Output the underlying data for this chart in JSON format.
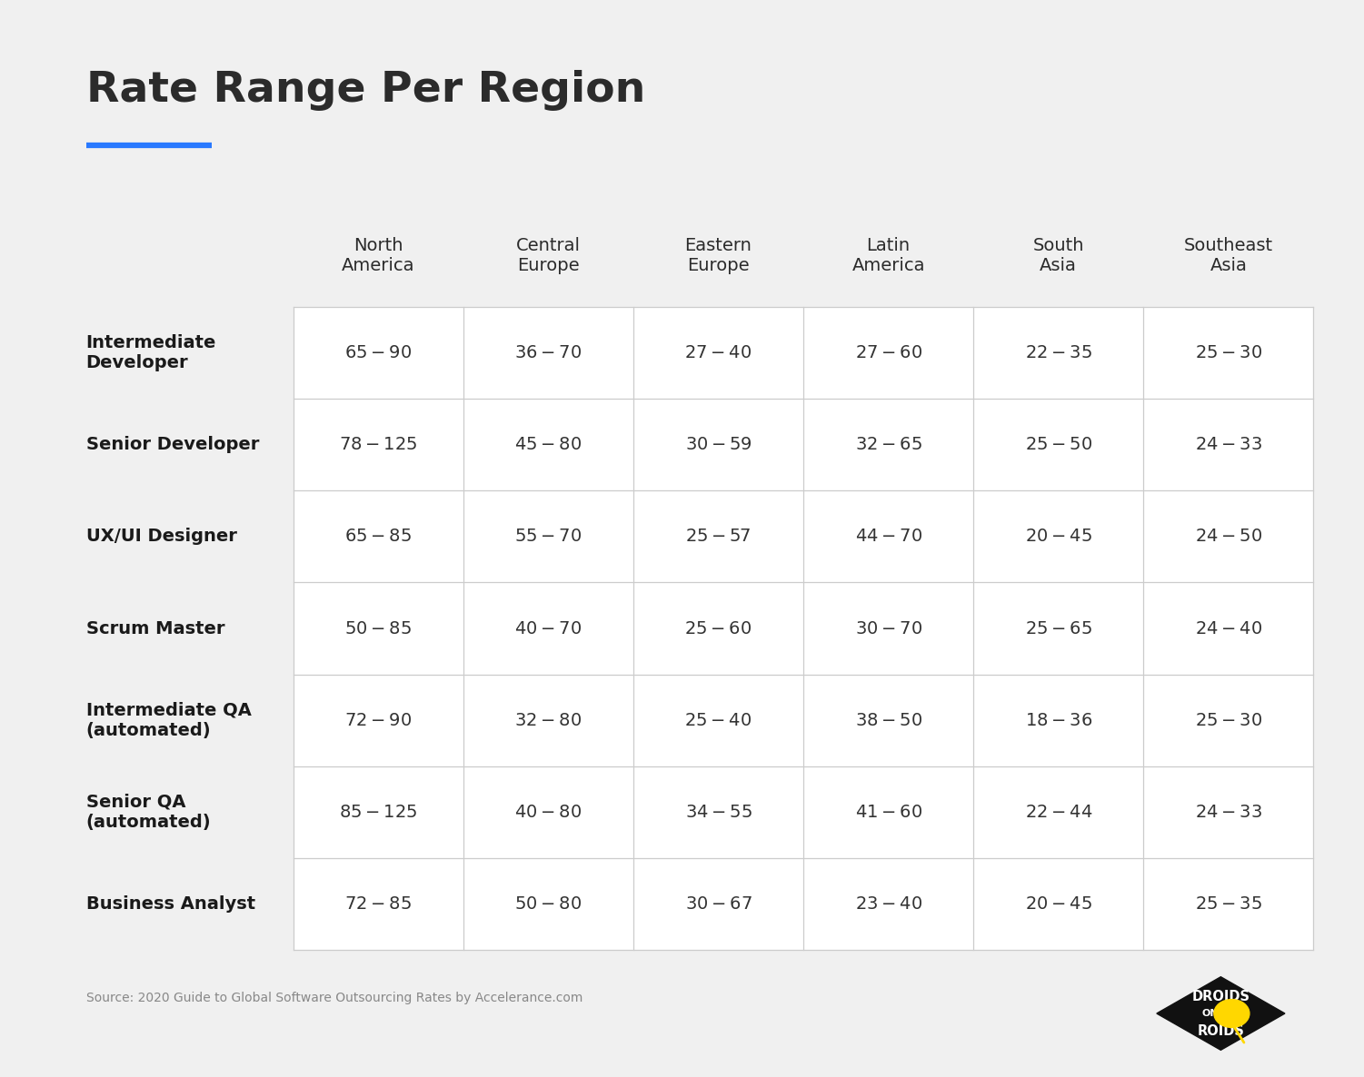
{
  "title": "Rate Range Per Region",
  "title_fontsize": 34,
  "title_color": "#2b2b2b",
  "background_color": "#f0f0f0",
  "table_bg_color": "#ffffff",
  "accent_color": "#2979FF",
  "source_text": "Source: 2020 Guide to Global Software Outsourcing Rates by Accelerance.com",
  "col_headers": [
    "North\nAmerica",
    "Central\nEurope",
    "Eastern\nEurope",
    "Latin\nAmerica",
    "South\nAsia",
    "Southeast\nAsia"
  ],
  "row_headers": [
    "Intermediate\nDeveloper",
    "Senior Developer",
    "UX/UI Designer",
    "Scrum Master",
    "Intermediate QA\n(automated)",
    "Senior QA\n(automated)",
    "Business Analyst"
  ],
  "table_data": [
    [
      "$65 - $90",
      "$36 - $70",
      "$27 - $40",
      "$27 - $60",
      "$22 - $35",
      "$25 - $30"
    ],
    [
      "$78 - $125",
      "$45 - $80",
      "$30 - $59",
      "$32 - $65",
      "$25 - $50",
      "$24 - $33"
    ],
    [
      "$65 - $85",
      "$55 - $70",
      "$25 - $57",
      "$44 - $70",
      "$20 - $45",
      "$24 - $50"
    ],
    [
      "$50 - $85",
      "$40 - $70",
      "$25 - $60",
      "$30 - $70",
      "$25 - $65",
      "$24 - $40"
    ],
    [
      "$72 - $90",
      "$32 - $80",
      "$25 - $40",
      "$38 - $50",
      "$18 - $36",
      "$25 - $30"
    ],
    [
      "$85 - $125",
      "$40 - $80",
      "$34 - $55",
      "$41 - $60",
      "$22 - $44",
      "$24 - $33"
    ],
    [
      "$72 - $85",
      "$50 - $80",
      "$30 - $67",
      "$23 - $40",
      "$20 - $45",
      "$25 - $35"
    ]
  ],
  "row_header_fontsize": 14,
  "col_header_fontsize": 14,
  "cell_fontsize": 14,
  "table_border_color": "#cccccc",
  "cell_text_color": "#333333",
  "header_text_color": "#2b2b2b",
  "row_label_color": "#1a1a1a",
  "source_fontsize": 10,
  "source_color": "#888888"
}
